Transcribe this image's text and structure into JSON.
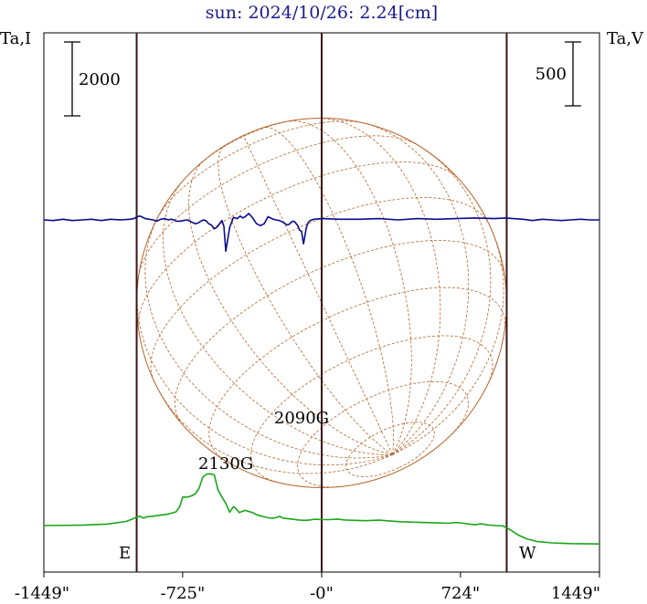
{
  "chart_data": {
    "type": "line",
    "title": "sun: 2024/10/26: 2.24[cm]",
    "left_axis_label": "Ta,I",
    "right_axis_label": "Ta,V",
    "x_ticks": [
      "-1449\"",
      "-725\"",
      "-0\"",
      "724\"",
      "1449\""
    ],
    "x_tick_values": [
      -1449,
      -725,
      0,
      724,
      1449
    ],
    "xlim": [
      -1449,
      1449
    ],
    "left_scale_bar": "2000",
    "right_scale_bar": "500",
    "limb_labels": {
      "east": "E",
      "west": "W"
    },
    "limb_positions": [
      -965,
      965
    ],
    "annotations": [
      {
        "text": "2130G",
        "x": -500,
        "y": 490
      },
      {
        "text": "2090G",
        "x": -105,
        "y": 440
      }
    ],
    "disk": {
      "center_x": 0,
      "radius": 965
    },
    "series": [
      {
        "name": "I",
        "color": "#1aa51a",
        "x": [
          -1449,
          -1250,
          -1120,
          -1020,
          -985,
          -960,
          -945,
          -930,
          -910,
          -885,
          -840,
          -800,
          -760,
          -740,
          -725,
          -700,
          -680,
          -660,
          -640,
          -620,
          -600,
          -580,
          -560,
          -540,
          -520,
          -500,
          -480,
          -460,
          -445,
          -430,
          -400,
          -360,
          -340,
          -310,
          -280,
          -260,
          -240,
          -220,
          -200,
          -150,
          -120,
          -90,
          -60,
          -40,
          0,
          40,
          80,
          120,
          170,
          230,
          300,
          350,
          420,
          480,
          540,
          600,
          660,
          700,
          740,
          770,
          800,
          830,
          860,
          900,
          945,
          975,
          1000,
          1030,
          1070,
          1120,
          1200,
          1250,
          1300,
          1449
        ],
        "y": [
          50,
          60,
          90,
          160,
          230,
          290,
          300,
          250,
          290,
          300,
          330,
          360,
          420,
          560,
          820,
          820,
          850,
          900,
          1050,
          1360,
          1440,
          1450,
          1420,
          1000,
          820,
          650,
          410,
          560,
          500,
          400,
          460,
          400,
          340,
          300,
          260,
          250,
          260,
          300,
          250,
          220,
          200,
          190,
          200,
          220,
          210,
          210,
          225,
          200,
          190,
          180,
          195,
          175,
          150,
          140,
          130,
          120,
          110,
          130,
          110,
          90,
          70,
          100,
          70,
          50,
          40,
          -40,
          -120,
          -220,
          -310,
          -380,
          -420,
          -430,
          -440,
          -450
        ]
      },
      {
        "name": "V",
        "color": "#0a0a8c",
        "x": [
          -1449,
          -1400,
          -1350,
          -1300,
          -1250,
          -1200,
          -1150,
          -1100,
          -1050,
          -1000,
          -980,
          -960,
          -950,
          -940,
          -920,
          -900,
          -880,
          -860,
          -840,
          -820,
          -800,
          -785,
          -770,
          -760,
          -740,
          -720,
          -700,
          -680,
          -660,
          -645,
          -630,
          -615,
          -600,
          -590,
          -575,
          -560,
          -545,
          -530,
          -520,
          -510,
          -500,
          -480,
          -460,
          -440,
          -425,
          -410,
          -395,
          -380,
          -360,
          -340,
          -320,
          -300,
          -280,
          -260,
          -240,
          -220,
          -200,
          -190,
          -180,
          -170,
          -160,
          -150,
          -140,
          -125,
          -115,
          -105,
          -95,
          -90,
          -80,
          -70,
          -60,
          -40,
          0,
          100,
          200,
          300,
          400,
          500,
          600,
          700,
          800,
          900,
          960,
          1000,
          1050,
          1100,
          1150,
          1200,
          1250,
          1300,
          1350,
          1400,
          1449
        ],
        "y": [
          0,
          -5,
          5,
          -5,
          0,
          5,
          -5,
          5,
          0,
          5,
          10,
          25,
          30,
          25,
          10,
          5,
          0,
          -10,
          5,
          10,
          0,
          5,
          0,
          -10,
          -10,
          -5,
          0,
          -15,
          -30,
          -25,
          -10,
          0,
          -10,
          -30,
          -40,
          -70,
          -55,
          -25,
          -5,
          -50,
          -245,
          -60,
          20,
          10,
          30,
          15,
          30,
          50,
          15,
          -30,
          -45,
          -30,
          25,
          10,
          0,
          -5,
          -20,
          -30,
          -40,
          -35,
          -20,
          -10,
          -15,
          -45,
          -80,
          -90,
          -187,
          -150,
          -60,
          -20,
          -5,
          5,
          10,
          5,
          5,
          10,
          0,
          10,
          5,
          10,
          15,
          10,
          15,
          10,
          5,
          -5,
          5,
          0,
          -5,
          0,
          5,
          0,
          0
        ]
      }
    ]
  }
}
